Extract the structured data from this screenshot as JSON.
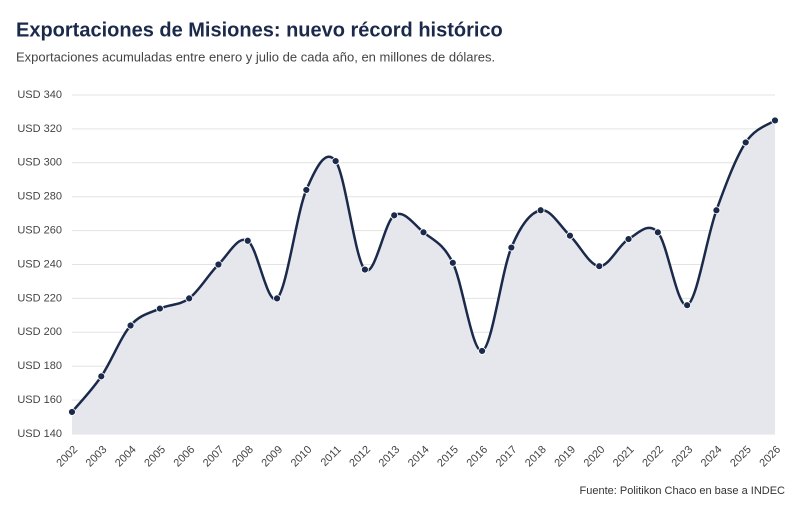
{
  "chart_data": {
    "type": "line",
    "title": "Exportaciones de Misiones: nuevo récord histórico",
    "subtitle": "Exportaciones acumuladas entre enero y julio de cada año, en millones de dólares.",
    "source": "Fuente: Politikon Chaco en base a INDEC",
    "categories": [
      "2002",
      "2003",
      "2004",
      "2005",
      "2006",
      "2007",
      "2008",
      "2009",
      "2010",
      "2011",
      "2012",
      "2013",
      "2014",
      "2015",
      "2016",
      "2017",
      "2018",
      "2019",
      "2020",
      "2021",
      "2022",
      "2023",
      "2024",
      "2025",
      "2026"
    ],
    "values": [
      153,
      174,
      204,
      214,
      220,
      240,
      254,
      220,
      284,
      301,
      237,
      269,
      259,
      241,
      189,
      250,
      272,
      257,
      239,
      255,
      259,
      216,
      272,
      312,
      325
    ],
    "color": "#1b2a4a",
    "fill": "#e6e7ec",
    "ylim": [
      140,
      340
    ],
    "yticks": [
      {
        "value": 140,
        "label": "USD 140"
      },
      {
        "value": 160,
        "label": "USD 160"
      },
      {
        "value": 180,
        "label": "USD 180"
      },
      {
        "value": 200,
        "label": "USD 200"
      },
      {
        "value": 220,
        "label": "USD 220"
      },
      {
        "value": 240,
        "label": "USD 240"
      },
      {
        "value": 260,
        "label": "USD 260"
      },
      {
        "value": 280,
        "label": "USD 280"
      },
      {
        "value": 300,
        "label": "USD 300"
      },
      {
        "value": 320,
        "label": "USD 320"
      },
      {
        "value": 340,
        "label": "USD 340"
      }
    ],
    "grid": true
  }
}
